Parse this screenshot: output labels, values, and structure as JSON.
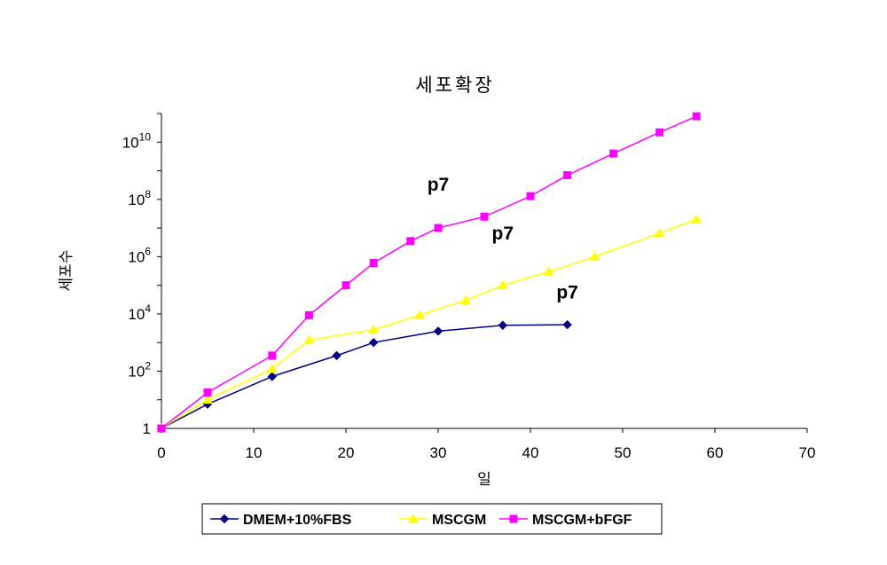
{
  "chart_data": {
    "type": "line",
    "title": "세포확장",
    "xlabel": "일",
    "ylabel": "세포수",
    "xlim": [
      0,
      70
    ],
    "xticks": [
      "0",
      "10",
      "20",
      "30",
      "40",
      "50",
      "60",
      "70"
    ],
    "y_scale": "log",
    "ylim": [
      1,
      100000000000
    ],
    "yticks": [
      {
        "value": 1,
        "base": "1",
        "exp": ""
      },
      {
        "value": 100,
        "base": "10",
        "exp": "2"
      },
      {
        "value": 10000,
        "base": "10",
        "exp": "4"
      },
      {
        "value": 1000000,
        "base": "10",
        "exp": "6"
      },
      {
        "value": 100000000,
        "base": "10",
        "exp": "8"
      },
      {
        "value": 10000000000,
        "base": "10",
        "exp": "10"
      }
    ],
    "grid": false,
    "legend_position": "bottom",
    "series": [
      {
        "name": "DMEM+10%FBS",
        "color": "#000080",
        "marker": "diamond",
        "x": [
          0,
          5,
          12,
          19,
          23,
          30,
          37,
          44
        ],
        "y": [
          1,
          7,
          65,
          350,
          1000,
          2500,
          4000,
          4200
        ]
      },
      {
        "name": "MSCGM",
        "color": "#ffff00",
        "marker": "triangle",
        "x": [
          0,
          5,
          12,
          16,
          23,
          28,
          33,
          37,
          42,
          47,
          54,
          58
        ],
        "y": [
          1,
          10,
          120,
          1200,
          2800,
          9000,
          30000,
          100000,
          300000,
          1000000,
          6500000,
          20000000
        ]
      },
      {
        "name": "MSCGM+bFGF",
        "color": "#ff00ff",
        "marker": "square",
        "x": [
          0,
          5,
          12,
          16,
          20,
          23,
          27,
          30,
          35,
          40,
          44,
          49,
          54,
          58
        ],
        "y": [
          1,
          18,
          350,
          9000,
          100000,
          600000,
          3500000,
          10000000,
          25000000,
          130000000,
          700000000,
          4000000000,
          22000000000,
          80000000000
        ]
      }
    ],
    "annotations": [
      {
        "text": "p7",
        "x": 30,
        "y": 200000000
      },
      {
        "text": "p7",
        "x": 37,
        "y": 4000000
      },
      {
        "text": "p7",
        "x": 44,
        "y": 35000
      }
    ]
  }
}
